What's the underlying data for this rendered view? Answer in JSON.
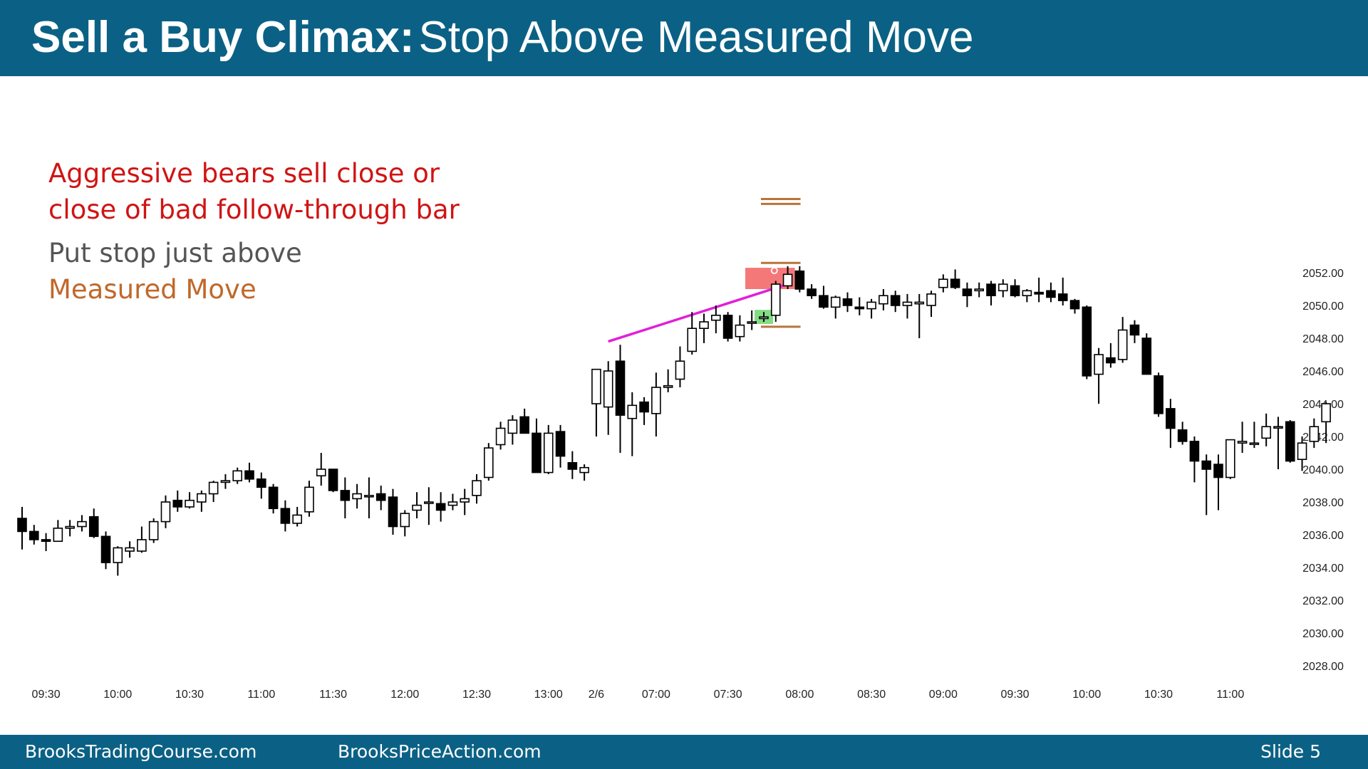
{
  "header": {
    "title_bold": "Sell a Buy Climax:",
    "title_rest": "Stop Above Measured Move"
  },
  "notes": {
    "line1": "Aggressive bears sell close or",
    "line2": "close of bad follow-through bar",
    "line3": "Put stop just above",
    "line4": "Measured Move"
  },
  "footer": {
    "left": "BrooksTradingCourse.com",
    "center": "BrooksPriceAction.com",
    "slide": "Slide  5"
  },
  "colors": {
    "header_bg": "#0b6185",
    "note_red": "#d01414",
    "note_gray": "#555555",
    "note_orange": "#c0682a",
    "trendline": "#e020d8",
    "measured_move": "#b8743a",
    "signal_bar": "#58d058",
    "entry_zone": "#f03030"
  },
  "chart_data": {
    "type": "candlestick",
    "ylim": [
      2027,
      2055
    ],
    "y_ticks": [
      "2052.00",
      "2050.00",
      "2048.00",
      "2046.00",
      "2044.00",
      "2042.00",
      "2040.00",
      "2038.00",
      "2036.00",
      "2034.00",
      "2032.00",
      "2030.00",
      "2028.00"
    ],
    "x_ticks": [
      {
        "label": "09:30",
        "bar": 2
      },
      {
        "label": "10:00",
        "bar": 8
      },
      {
        "label": "10:30",
        "bar": 14
      },
      {
        "label": "11:00",
        "bar": 20
      },
      {
        "label": "11:30",
        "bar": 26
      },
      {
        "label": "12:00",
        "bar": 32
      },
      {
        "label": "12:30",
        "bar": 38
      },
      {
        "label": "13:00",
        "bar": 44
      },
      {
        "label": "2/6",
        "bar": 48
      },
      {
        "label": "07:00",
        "bar": 53
      },
      {
        "label": "07:30",
        "bar": 59
      },
      {
        "label": "08:00",
        "bar": 65
      },
      {
        "label": "08:30",
        "bar": 71
      },
      {
        "label": "09:00",
        "bar": 77
      },
      {
        "label": "09:30",
        "bar": 83
      },
      {
        "label": "10:00",
        "bar": 89
      },
      {
        "label": "10:30",
        "bar": 95
      },
      {
        "label": "11:00",
        "bar": 101
      }
    ],
    "bars": [
      [
        2037.0,
        2037.7,
        2035.1,
        2036.2
      ],
      [
        2036.2,
        2036.6,
        2035.4,
        2035.7
      ],
      [
        2035.7,
        2036.1,
        2035.0,
        2035.6
      ],
      [
        2035.6,
        2036.9,
        2035.6,
        2036.4
      ],
      [
        2036.4,
        2036.9,
        2035.9,
        2036.5
      ],
      [
        2036.5,
        2037.2,
        2036.2,
        2036.8
      ],
      [
        2037.1,
        2037.6,
        2035.8,
        2035.9
      ],
      [
        2035.9,
        2036.2,
        2033.9,
        2034.3
      ],
      [
        2034.3,
        2035.3,
        2033.5,
        2035.2
      ],
      [
        2035.0,
        2035.6,
        2034.6,
        2035.2
      ],
      [
        2035.0,
        2036.5,
        2034.9,
        2035.7
      ],
      [
        2035.7,
        2037.0,
        2035.5,
        2036.8
      ],
      [
        2036.8,
        2038.4,
        2036.4,
        2038.0
      ],
      [
        2038.1,
        2038.7,
        2037.4,
        2037.7
      ],
      [
        2037.7,
        2038.6,
        2037.6,
        2038.1
      ],
      [
        2038.0,
        2038.7,
        2037.4,
        2038.5
      ],
      [
        2038.5,
        2039.3,
        2038.0,
        2039.2
      ],
      [
        2039.2,
        2039.7,
        2038.8,
        2039.3
      ],
      [
        2039.3,
        2040.1,
        2039.1,
        2039.9
      ],
      [
        2039.9,
        2040.4,
        2039.2,
        2039.4
      ],
      [
        2039.4,
        2039.8,
        2038.2,
        2038.9
      ],
      [
        2038.9,
        2039.1,
        2037.3,
        2037.6
      ],
      [
        2037.6,
        2038.1,
        2036.2,
        2036.7
      ],
      [
        2036.7,
        2037.7,
        2036.5,
        2037.2
      ],
      [
        2037.4,
        2039.3,
        2037.1,
        2038.9
      ],
      [
        2039.6,
        2041.0,
        2039.0,
        2040.0
      ],
      [
        2040.0,
        2040.0,
        2038.6,
        2038.7
      ],
      [
        2038.7,
        2039.5,
        2037.0,
        2038.1
      ],
      [
        2038.2,
        2039.1,
        2037.6,
        2038.5
      ],
      [
        2038.4,
        2039.5,
        2037.0,
        2038.4
      ],
      [
        2038.5,
        2039.0,
        2037.5,
        2038.1
      ],
      [
        2038.3,
        2038.8,
        2036.0,
        2036.5
      ],
      [
        2036.5,
        2037.5,
        2035.9,
        2037.3
      ],
      [
        2037.5,
        2038.6,
        2037.0,
        2037.8
      ],
      [
        2038.0,
        2038.9,
        2036.6,
        2038.0
      ],
      [
        2037.9,
        2038.6,
        2036.8,
        2037.5
      ],
      [
        2037.8,
        2038.5,
        2037.5,
        2038.0
      ],
      [
        2038.0,
        2038.8,
        2037.2,
        2038.2
      ],
      [
        2038.4,
        2039.7,
        2037.9,
        2039.3
      ],
      [
        2039.5,
        2041.6,
        2039.3,
        2041.3
      ],
      [
        2041.5,
        2042.9,
        2041.2,
        2042.5
      ],
      [
        2042.2,
        2043.3,
        2041.5,
        2043.0
      ],
      [
        2043.2,
        2043.7,
        2042.3,
        2042.2
      ],
      [
        2042.2,
        2043.1,
        2039.8,
        2039.8
      ],
      [
        2039.8,
        2042.7,
        2039.7,
        2042.2
      ],
      [
        2042.3,
        2042.7,
        2040.1,
        2040.8
      ],
      [
        2040.4,
        2041.1,
        2039.4,
        2040.0
      ],
      [
        2039.8,
        2040.3,
        2039.3,
        2040.1
      ],
      [
        2044.0,
        2045.2,
        2042.0,
        2046.1
      ],
      [
        2043.8,
        2046.6,
        2042.1,
        2046.0
      ],
      [
        2046.6,
        2047.6,
        2041.0,
        2043.3
      ],
      [
        2043.1,
        2044.7,
        2040.8,
        2043.9
      ],
      [
        2044.1,
        2044.4,
        2042.7,
        2043.5
      ],
      [
        2043.4,
        2045.9,
        2042.0,
        2045.0
      ],
      [
        2045.0,
        2046.1,
        2044.7,
        2045.1
      ],
      [
        2045.5,
        2047.5,
        2045.0,
        2046.6
      ],
      [
        2047.2,
        2049.6,
        2047.0,
        2048.6
      ],
      [
        2048.6,
        2049.5,
        2047.7,
        2049.0
      ],
      [
        2049.1,
        2050.0,
        2048.3,
        2049.4
      ],
      [
        2049.4,
        2049.6,
        2047.8,
        2048.0
      ],
      [
        2048.1,
        2049.4,
        2047.8,
        2048.8
      ],
      [
        2049.0,
        2049.7,
        2048.5,
        2049.0
      ],
      [
        2049.2,
        2049.6,
        2049.0,
        2049.3
      ],
      [
        2049.4,
        2051.5,
        2049.0,
        2051.3
      ],
      [
        2051.2,
        2052.4,
        2051.0,
        2051.9
      ],
      [
        2052.1,
        2052.4,
        2050.8,
        2051.0
      ],
      [
        2051.0,
        2051.3,
        2050.4,
        2050.6
      ],
      [
        2050.6,
        2051.2,
        2049.8,
        2049.9
      ],
      [
        2049.9,
        2050.6,
        2049.2,
        2050.5
      ],
      [
        2050.4,
        2050.8,
        2049.6,
        2050.0
      ],
      [
        2049.9,
        2050.5,
        2049.4,
        2049.8
      ],
      [
        2049.8,
        2050.4,
        2049.2,
        2050.2
      ],
      [
        2050.1,
        2051.0,
        2049.7,
        2050.6
      ],
      [
        2050.6,
        2050.9,
        2049.6,
        2050.0
      ],
      [
        2050.0,
        2050.7,
        2049.2,
        2050.2
      ],
      [
        2050.1,
        2050.7,
        2048.0,
        2050.2
      ],
      [
        2050.0,
        2050.9,
        2049.3,
        2050.7
      ],
      [
        2051.1,
        2051.9,
        2050.8,
        2051.6
      ],
      [
        2051.6,
        2052.2,
        2051.0,
        2051.1
      ],
      [
        2051.0,
        2051.4,
        2049.9,
        2050.6
      ],
      [
        2050.9,
        2051.4,
        2050.5,
        2051.0
      ],
      [
        2051.3,
        2051.5,
        2050.0,
        2050.6
      ],
      [
        2050.9,
        2051.6,
        2050.5,
        2051.3
      ],
      [
        2051.2,
        2051.6,
        2050.5,
        2050.6
      ],
      [
        2050.6,
        2051.0,
        2050.2,
        2050.9
      ],
      [
        2050.8,
        2051.7,
        2050.2,
        2050.7
      ],
      [
        2050.9,
        2051.4,
        2050.2,
        2050.5
      ],
      [
        2050.7,
        2051.7,
        2050.0,
        2050.3
      ],
      [
        2050.3,
        2050.4,
        2049.5,
        2049.8
      ],
      [
        2049.9,
        2050.0,
        2045.5,
        2045.7
      ],
      [
        2045.8,
        2047.4,
        2044.0,
        2047.0
      ],
      [
        2046.8,
        2047.7,
        2046.2,
        2046.5
      ],
      [
        2046.7,
        2049.3,
        2046.5,
        2048.5
      ],
      [
        2048.8,
        2049.1,
        2047.7,
        2048.2
      ],
      [
        2048.0,
        2048.3,
        2045.8,
        2045.8
      ],
      [
        2045.7,
        2045.9,
        2043.2,
        2043.4
      ],
      [
        2043.7,
        2044.3,
        2041.3,
        2042.5
      ],
      [
        2042.4,
        2042.9,
        2041.5,
        2041.7
      ],
      [
        2041.7,
        2042.0,
        2039.2,
        2040.5
      ],
      [
        2040.5,
        2040.9,
        2037.2,
        2040.0
      ],
      [
        2040.3,
        2040.9,
        2037.5,
        2039.5
      ],
      [
        2039.5,
        2041.8,
        2039.4,
        2041.8
      ],
      [
        2041.6,
        2042.9,
        2041.0,
        2041.7
      ],
      [
        2041.6,
        2042.9,
        2041.3,
        2041.6
      ],
      [
        2041.9,
        2043.4,
        2041.4,
        2042.6
      ],
      [
        2042.6,
        2043.2,
        2040.0,
        2042.6
      ],
      [
        2042.9,
        2043.0,
        2040.4,
        2040.5
      ],
      [
        2040.6,
        2042.0,
        2039.9,
        2041.6
      ],
      [
        2041.7,
        2043.1,
        2041.3,
        2042.6
      ],
      [
        2042.9,
        2044.1,
        2041.6,
        2044.0
      ]
    ],
    "annotations": {
      "trendline": {
        "from": {
          "bar": 49,
          "price": 2047.8
        },
        "to": {
          "bar": 64,
          "price": 2051.3
        }
      },
      "signal_bar": 62,
      "entry_zone": {
        "from_bar": 62,
        "to_bar": 64,
        "top": 2052.3,
        "bottom": 2051.0
      },
      "entry_marker": {
        "bar": 63,
        "price": 2052.0
      },
      "measured_move_levels": [
        2048.7,
        2052.6,
        2056.2,
        2056.5
      ]
    }
  }
}
